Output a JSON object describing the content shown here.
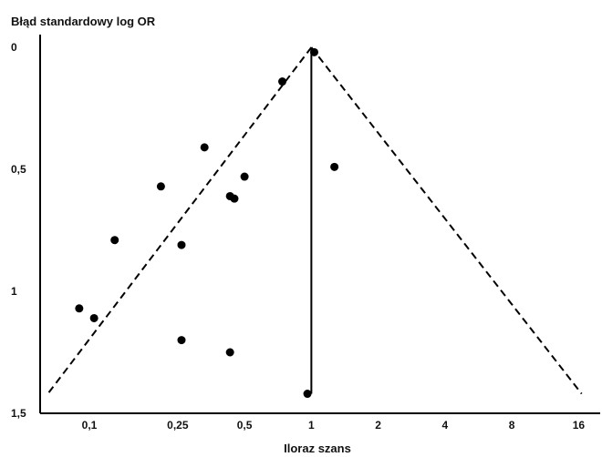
{
  "chart_data": {
    "type": "scatter",
    "title": "Błąd standardowy log OR",
    "xlabel": "Iloraz szans",
    "ylabel": "Błąd standardowy log OR",
    "x_scale": "log",
    "y_inverted": true,
    "xlim": [
      0.06,
      20
    ],
    "ylim": [
      0,
      1.5
    ],
    "x_ticks": [
      0.1,
      0.25,
      0.5,
      1,
      2,
      4,
      8,
      16
    ],
    "x_tick_labels": [
      "0,1",
      "0,25",
      "0,5",
      "1",
      "2",
      "4",
      "8",
      "16"
    ],
    "y_ticks": [
      0,
      0.5,
      1,
      1.5
    ],
    "y_tick_labels": [
      "0",
      "0,5",
      "1",
      "1,5"
    ],
    "grid": false,
    "reference_line": {
      "x": 1
    },
    "funnel": {
      "apex": [
        1,
        0
      ],
      "left_bottom": [
        0.065,
        1.42
      ],
      "right_bottom": [
        16.5,
        1.42
      ]
    },
    "points": [
      {
        "x": 1.03,
        "y": 0.02
      },
      {
        "x": 0.74,
        "y": 0.14
      },
      {
        "x": 0.33,
        "y": 0.41
      },
      {
        "x": 1.27,
        "y": 0.49
      },
      {
        "x": 0.5,
        "y": 0.53
      },
      {
        "x": 0.21,
        "y": 0.57
      },
      {
        "x": 0.43,
        "y": 0.61
      },
      {
        "x": 0.45,
        "y": 0.62
      },
      {
        "x": 0.13,
        "y": 0.79
      },
      {
        "x": 0.26,
        "y": 0.81
      },
      {
        "x": 0.09,
        "y": 1.07
      },
      {
        "x": 0.105,
        "y": 1.11
      },
      {
        "x": 0.26,
        "y": 1.2
      },
      {
        "x": 0.43,
        "y": 1.25
      },
      {
        "x": 0.96,
        "y": 1.42
      }
    ]
  }
}
